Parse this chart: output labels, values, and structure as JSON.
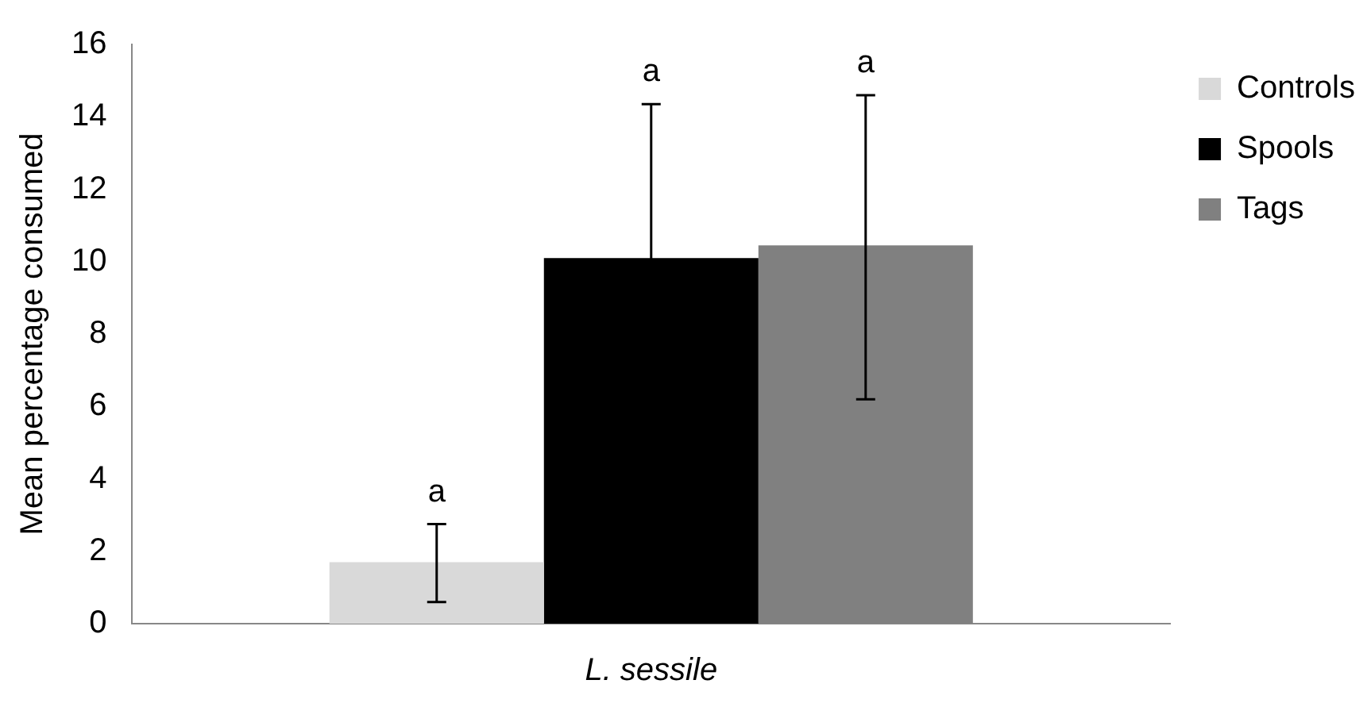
{
  "chart_data": {
    "type": "bar",
    "ylabel": "Mean percentage consumed",
    "categories": [
      "L. sessile"
    ],
    "series": [
      {
        "name": "Controls",
        "color": "#d9d9d9",
        "values": [
          1.7
        ],
        "errors": [
          [
            0.6,
            2.75
          ]
        ]
      },
      {
        "name": "Spools",
        "color": "#000000",
        "values": [
          10.1
        ],
        "errors": [
          4.25
        ]
      },
      {
        "name": "Tags",
        "color": "#808080",
        "values": [
          10.45
        ],
        "errors": [
          [
            6.2,
            14.6
          ]
        ]
      }
    ],
    "ylim": [
      0,
      16
    ],
    "yticks": [
      0,
      2,
      4,
      6,
      8,
      10,
      12,
      14,
      16
    ],
    "grid": false,
    "legend": "right",
    "annotations": [
      "a",
      "a",
      "a"
    ]
  }
}
